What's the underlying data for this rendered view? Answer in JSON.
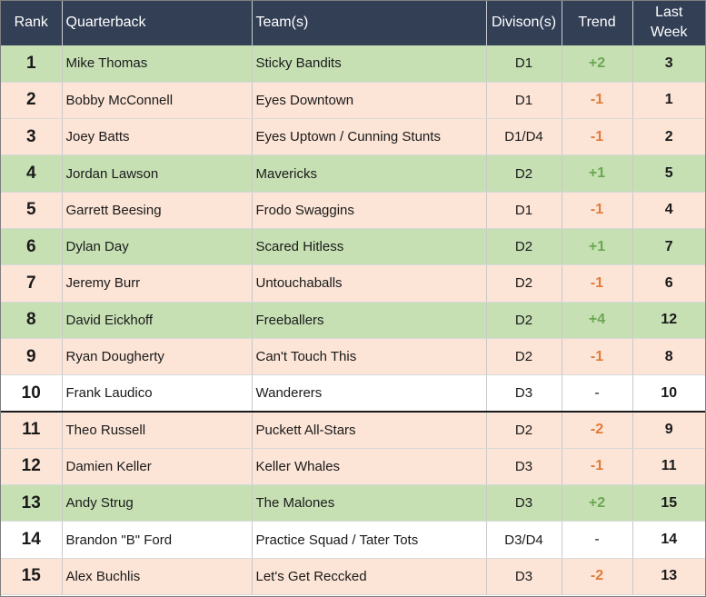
{
  "headers": {
    "rank": "Rank",
    "quarterback": "Quarterback",
    "teams": "Team(s)",
    "divisions": "Divison(s)",
    "trend": "Trend",
    "last_week_line1": "Last",
    "last_week_line2": "Week"
  },
  "colors": {
    "header_bg": "#323f55",
    "row_green": "#c6e0b4",
    "row_peach": "#fce4d6",
    "row_white": "#ffffff",
    "trend_up": "#6aa84f",
    "trend_down": "#e07b39"
  },
  "rows": [
    {
      "rank": "1",
      "qb": "Mike Thomas",
      "team": "Sticky Bandits",
      "division": "D1",
      "trend": "+2",
      "last_week": "3",
      "shade": "green"
    },
    {
      "rank": "2",
      "qb": "Bobby McConnell",
      "team": "Eyes Downtown",
      "division": "D1",
      "trend": "-1",
      "last_week": "1",
      "shade": "peach"
    },
    {
      "rank": "3",
      "qb": "Joey Batts",
      "team": "Eyes Uptown / Cunning Stunts",
      "division": "D1/D4",
      "trend": "-1",
      "last_week": "2",
      "shade": "peach"
    },
    {
      "rank": "4",
      "qb": "Jordan Lawson",
      "team": "Mavericks",
      "division": "D2",
      "trend": "+1",
      "last_week": "5",
      "shade": "green"
    },
    {
      "rank": "5",
      "qb": "Garrett Beesing",
      "team": "Frodo Swaggins",
      "division": "D1",
      "trend": "-1",
      "last_week": "4",
      "shade": "peach"
    },
    {
      "rank": "6",
      "qb": "Dylan Day",
      "team": "Scared Hitless",
      "division": "D2",
      "trend": "+1",
      "last_week": "7",
      "shade": "green"
    },
    {
      "rank": "7",
      "qb": "Jeremy Burr",
      "team": "Untouchaballs",
      "division": "D2",
      "trend": "-1",
      "last_week": "6",
      "shade": "peach"
    },
    {
      "rank": "8",
      "qb": "David Eickhoff",
      "team": "Freeballers",
      "division": "D2",
      "trend": "+4",
      "last_week": "12",
      "shade": "green"
    },
    {
      "rank": "9",
      "qb": "Ryan Dougherty",
      "team": "Can't Touch This",
      "division": "D2",
      "trend": "-1",
      "last_week": "8",
      "shade": "peach"
    },
    {
      "rank": "10",
      "qb": "Frank Laudico",
      "team": "Wanderers",
      "division": "D3",
      "trend": "-",
      "last_week": "10",
      "shade": "white"
    },
    {
      "rank": "11",
      "qb": "Theo Russell",
      "team": "Puckett All-Stars",
      "division": "D2",
      "trend": "-2",
      "last_week": "9",
      "shade": "peach"
    },
    {
      "rank": "12",
      "qb": "Damien Keller",
      "team": "Keller Whales",
      "division": "D3",
      "trend": "-1",
      "last_week": "11",
      "shade": "peach"
    },
    {
      "rank": "13",
      "qb": "Andy Strug",
      "team": "The Malones",
      "division": "D3",
      "trend": "+2",
      "last_week": "15",
      "shade": "green"
    },
    {
      "rank": "14",
      "qb": "Brandon \"B\" Ford",
      "team": "Practice Squad / Tater Tots",
      "division": "D3/D4",
      "trend": "-",
      "last_week": "14",
      "shade": "white"
    },
    {
      "rank": "15",
      "qb": "Alex Buchlis",
      "team": "Let's Get Reccked",
      "division": "D3",
      "trend": "-2",
      "last_week": "13",
      "shade": "peach"
    }
  ]
}
